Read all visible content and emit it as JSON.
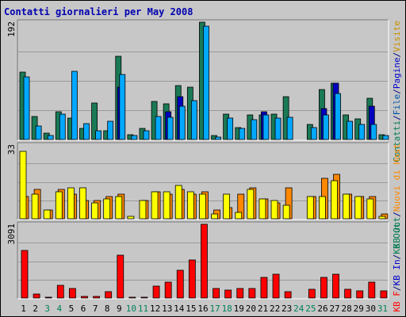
{
  "chart_data": {
    "type": "bar",
    "title": "Contatti giornalieri per May 2008",
    "categories": [
      "1",
      "2",
      "3",
      "4",
      "5",
      "6",
      "7",
      "8",
      "9",
      "10",
      "11",
      "12",
      "13",
      "14",
      "15",
      "16",
      "17",
      "18",
      "19",
      "20",
      "21",
      "22",
      "23",
      "24",
      "25",
      "26",
      "27",
      "28",
      "29",
      "30",
      "31"
    ],
    "weekend_days": [
      "3",
      "4",
      "10",
      "11",
      "17",
      "18",
      "24",
      "25",
      "31"
    ],
    "panels": [
      {
        "id": "top",
        "ymax": 192,
        "max_label": "192",
        "right_label_parts": [
          {
            "text": "Contatti",
            "color": "#007a50"
          },
          {
            "text": "/",
            "color": "#000080"
          },
          {
            "text": "File",
            "color": "#0055aa"
          },
          {
            "text": "/",
            "color": "#000080"
          },
          {
            "text": "Pagine",
            "color": "#0000cc"
          },
          {
            "text": "/",
            "color": "#000080"
          },
          {
            "text": "Visite",
            "color": "#c89000"
          }
        ],
        "series": [
          {
            "name": "Contatti",
            "color": "#1a7a55",
            "values": [
              110,
              38,
              10,
              45,
              35,
              18,
              60,
              14,
              136,
              8,
              18,
              62,
              58,
              88,
              85,
              192,
              6,
              42,
              20,
              40,
              40,
              42,
              70,
              0,
              24,
              82,
              92,
              40,
              34,
              68,
              8
            ]
          },
          {
            "name": "Pagine",
            "color": "#0000c0",
            "values": [
              0,
              0,
              0,
              0,
              0,
              0,
              0,
              0,
              85,
              0,
              0,
              0,
              45,
              70,
              0,
              0,
              0,
              0,
              0,
              0,
              45,
              0,
              0,
              0,
              0,
              50,
              92,
              0,
              0,
              55,
              0
            ]
          },
          {
            "name": "File",
            "color": "#00a8ff",
            "values": [
              102,
              22,
              7,
              42,
              111,
              26,
              14,
              30,
              107,
              6,
              14,
              38,
              36,
              55,
              64,
              186,
              4,
              35,
              18,
              32,
              40,
              35,
              36,
              0,
              20,
              40,
              75,
              30,
              25,
              25,
              6
            ]
          }
        ]
      },
      {
        "id": "middle",
        "ymax": 33,
        "max_label": "33",
        "right_label_parts": [
          {
            "text": "KB Out",
            "color": "#007a50"
          },
          {
            "text": "/",
            "color": "#000080"
          },
          {
            "text": "Nuovi di Host",
            "color": "#ff8800"
          }
        ],
        "series": [
          {
            "name": "Nuovi di Host",
            "color": "#ff8800",
            "values": [
              10,
              13,
              4,
              13,
              11,
              8,
              8,
              10,
              11,
              0,
              8,
              12,
              11,
              13,
              11,
              12,
              4,
              5,
              11,
              14,
              9,
              7,
              14,
              0,
              10,
              18,
              20,
              11,
              10,
              10,
              2
            ]
          },
          {
            "name": "KB Out",
            "color": "#ffff00",
            "values": [
              30,
              11,
              4,
              12,
              14,
              14,
              7,
              9,
              10,
              1,
              8,
              12,
              12,
              15,
              12,
              11,
              2,
              11,
              3,
              13,
              9,
              8,
              6,
              0,
              10,
              10,
              17,
              11,
              10,
              9,
              1
            ]
          }
        ]
      },
      {
        "id": "bottom",
        "ymax": 3091,
        "max_label": "3091",
        "right_label_parts": [
          {
            "text": "KB F",
            "color": "#ff0000"
          },
          {
            "text": "/",
            "color": "#000080"
          },
          {
            "text": "KB In",
            "color": "#0000cc"
          },
          {
            "text": "/",
            "color": "#000080"
          },
          {
            "text": "KB Out",
            "color": "#007a50"
          }
        ],
        "series": [
          {
            "name": "KB F",
            "color": "#ff0000",
            "values": [
              2000,
              170,
              40,
              530,
              390,
              50,
              50,
              270,
              1800,
              40,
              40,
              500,
              650,
              1150,
              1600,
              3091,
              400,
              330,
              400,
              400,
              860,
              1000,
              270,
              0,
              370,
              850,
              1000,
              380,
              300,
              650,
              300
            ]
          }
        ]
      }
    ]
  },
  "colors": {
    "weekday_label": "#000000",
    "weekend_label": "#00805a",
    "max_label": "#000000",
    "title": "#0000b0"
  }
}
